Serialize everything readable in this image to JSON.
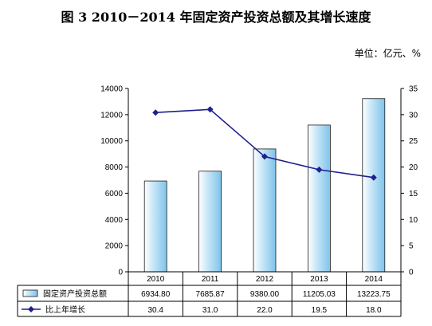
{
  "chart_data": {
    "type": "bar+line",
    "title": "图 3    2010－2014 年固定资产投资总额及其增长速度",
    "unit_label": "单位：亿元、%",
    "categories": [
      "2010",
      "2011",
      "2012",
      "2013",
      "2014"
    ],
    "series": [
      {
        "name": "固定资产投资总额",
        "type": "bar",
        "axis": "left",
        "values": [
          6934.8,
          7685.87,
          9380.0,
          11205.03,
          13223.75
        ],
        "value_labels": [
          "6934.80",
          "7685.87",
          "9380.00",
          "11205.03",
          "13223.75"
        ],
        "color": "#9fd4f2"
      },
      {
        "name": "比上年增长",
        "type": "line",
        "axis": "right",
        "values": [
          30.4,
          31.0,
          22.0,
          19.5,
          18.0
        ],
        "value_labels": [
          "30.4",
          "31.0",
          "22.0",
          "19.5",
          "18.0"
        ],
        "color": "#1f1f8f"
      }
    ],
    "y_left": {
      "min": 0,
      "max": 14000,
      "step": 2000,
      "tick_labels": [
        "0",
        "2000",
        "4000",
        "6000",
        "8000",
        "10000",
        "12000",
        "14000"
      ]
    },
    "y_right": {
      "min": 0,
      "max": 35,
      "step": 5,
      "tick_labels": [
        "0",
        "5",
        "10",
        "15",
        "20",
        "25",
        "30",
        "35"
      ]
    },
    "grid": false,
    "legend": "data-table-bottom"
  }
}
